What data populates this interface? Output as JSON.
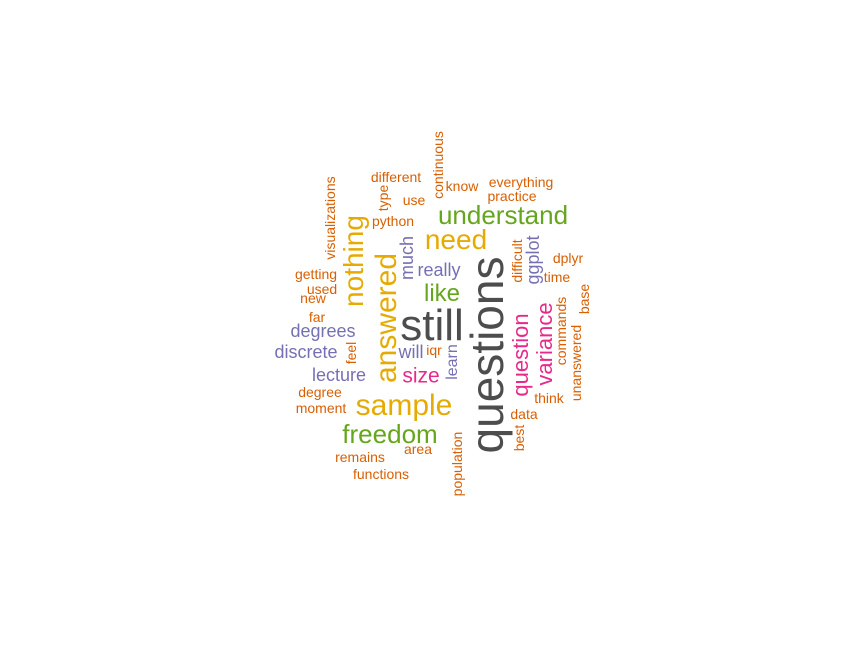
{
  "palette": {
    "gray": "#4d4d4d",
    "orange": "#d95f02",
    "gold": "#e6ab02",
    "green": "#66a61e",
    "purple": "#7570b3",
    "magenta": "#e7298a"
  },
  "words": [
    {
      "text": "questions",
      "color": "gray",
      "freq": 10
    },
    {
      "text": "still",
      "color": "gray",
      "freq": 9
    },
    {
      "text": "sample",
      "color": "gold",
      "freq": 6
    },
    {
      "text": "answered",
      "color": "gold",
      "freq": 6
    },
    {
      "text": "nothing",
      "color": "gold",
      "freq": 6
    },
    {
      "text": "need",
      "color": "gold",
      "freq": 6
    },
    {
      "text": "understand",
      "color": "green",
      "freq": 5
    },
    {
      "text": "freedom",
      "color": "green",
      "freq": 5
    },
    {
      "text": "like",
      "color": "green",
      "freq": 4
    },
    {
      "text": "variance",
      "color": "magenta",
      "freq": 4
    },
    {
      "text": "question",
      "color": "magenta",
      "freq": 4
    },
    {
      "text": "size",
      "color": "magenta",
      "freq": 4
    },
    {
      "text": "really",
      "color": "purple",
      "freq": 3
    },
    {
      "text": "degrees",
      "color": "purple",
      "freq": 3
    },
    {
      "text": "discrete",
      "color": "purple",
      "freq": 3
    },
    {
      "text": "lecture",
      "color": "purple",
      "freq": 3
    },
    {
      "text": "much",
      "color": "purple",
      "freq": 3
    },
    {
      "text": "ggplot",
      "color": "purple",
      "freq": 3
    },
    {
      "text": "will",
      "color": "purple",
      "freq": 3
    },
    {
      "text": "learn",
      "color": "purple",
      "freq": 3
    },
    {
      "text": "continuous",
      "color": "orange",
      "freq": 2
    },
    {
      "text": "different",
      "color": "orange",
      "freq": 2
    },
    {
      "text": "know",
      "color": "orange",
      "freq": 2
    },
    {
      "text": "everything",
      "color": "orange",
      "freq": 2
    },
    {
      "text": "practice",
      "color": "orange",
      "freq": 2
    },
    {
      "text": "visualizations",
      "color": "orange",
      "freq": 2
    },
    {
      "text": "type",
      "color": "orange",
      "freq": 2
    },
    {
      "text": "use",
      "color": "orange",
      "freq": 2
    },
    {
      "text": "python",
      "color": "orange",
      "freq": 2
    },
    {
      "text": "getting",
      "color": "orange",
      "freq": 2
    },
    {
      "text": "used",
      "color": "orange",
      "freq": 2
    },
    {
      "text": "new",
      "color": "orange",
      "freq": 2
    },
    {
      "text": "far",
      "color": "orange",
      "freq": 2
    },
    {
      "text": "feel",
      "color": "orange",
      "freq": 2
    },
    {
      "text": "iqr",
      "color": "orange",
      "freq": 2
    },
    {
      "text": "degree",
      "color": "orange",
      "freq": 2
    },
    {
      "text": "moment",
      "color": "orange",
      "freq": 2
    },
    {
      "text": "remains",
      "color": "orange",
      "freq": 2
    },
    {
      "text": "functions",
      "color": "orange",
      "freq": 2
    },
    {
      "text": "area",
      "color": "orange",
      "freq": 2
    },
    {
      "text": "population",
      "color": "orange",
      "freq": 2
    },
    {
      "text": "difficult",
      "color": "orange",
      "freq": 2
    },
    {
      "text": "dplyr",
      "color": "orange",
      "freq": 2
    },
    {
      "text": "time",
      "color": "orange",
      "freq": 2
    },
    {
      "text": "base",
      "color": "orange",
      "freq": 2
    },
    {
      "text": "commands",
      "color": "orange",
      "freq": 2
    },
    {
      "text": "unanswered",
      "color": "orange",
      "freq": 2
    },
    {
      "text": "think",
      "color": "orange",
      "freq": 2
    },
    {
      "text": "data",
      "color": "orange",
      "freq": 2
    },
    {
      "text": "best",
      "color": "orange",
      "freq": 2
    }
  ]
}
